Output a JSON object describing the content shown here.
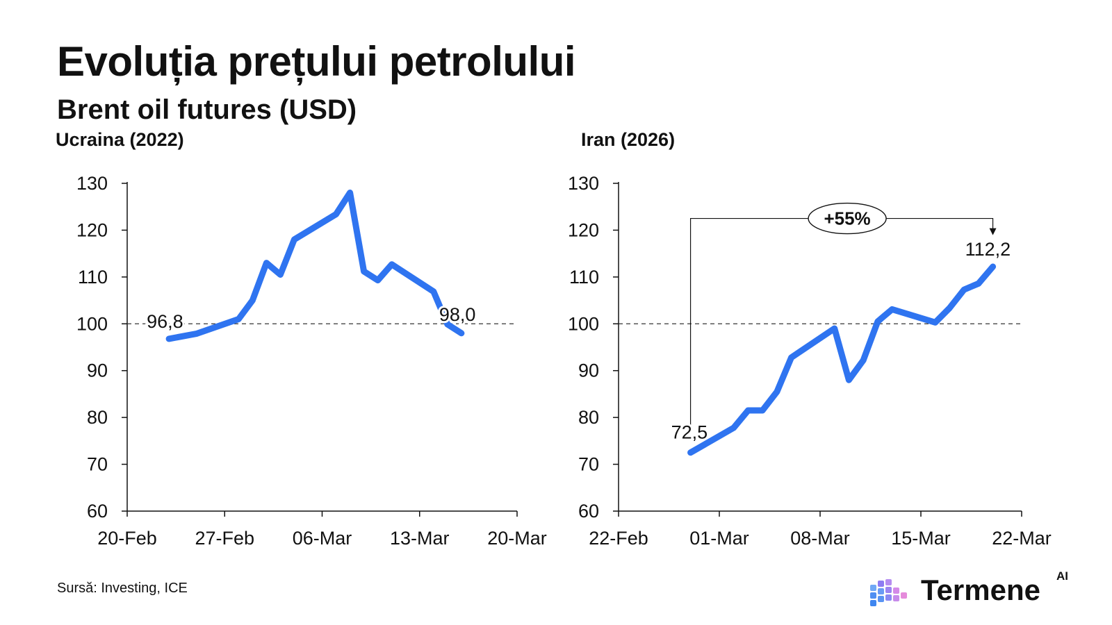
{
  "title": "Evoluția prețului petrolului",
  "subtitle": "Brent oil futures (USD)",
  "source": "Sursă: Investing, ICE",
  "brand": {
    "name": "Termene",
    "superscript": "AI"
  },
  "colors": {
    "line": "#2F74F0",
    "axis": "#111111",
    "reference": "#333333"
  },
  "chart_data": [
    {
      "type": "line",
      "title": "Ucraina (2022)",
      "x_type": "date",
      "ylim": [
        60,
        130
      ],
      "yticks": [
        60,
        70,
        80,
        90,
        100,
        110,
        120,
        130
      ],
      "xlim": [
        "2022-02-20",
        "2022-03-20"
      ],
      "xticks": [
        "2022-02-20",
        "2022-02-27",
        "2022-03-06",
        "2022-03-13",
        "2022-03-20"
      ],
      "xtick_labels": [
        "20-Feb",
        "27-Feb",
        "06-Mar",
        "13-Mar",
        "20-Mar"
      ],
      "reference_line": 100,
      "grid": false,
      "series": [
        {
          "x": [
            "2022-02-23",
            "2022-02-25",
            "2022-02-28",
            "2022-03-01",
            "2022-03-02",
            "2022-03-03",
            "2022-03-04",
            "2022-03-07",
            "2022-03-08",
            "2022-03-09",
            "2022-03-10",
            "2022-03-11",
            "2022-03-14",
            "2022-03-15",
            "2022-03-16"
          ],
          "y": [
            96.8,
            97.9,
            101.0,
            105.0,
            113.0,
            110.5,
            118.0,
            123.4,
            128.0,
            111.2,
            109.3,
            112.7,
            106.9,
            99.9,
            98.0
          ]
        }
      ],
      "annotations": [
        {
          "text": "96,8",
          "x": "2022-02-23",
          "y": 96.8
        },
        {
          "text": "98,0",
          "x": "2022-03-16",
          "y": 98.0
        }
      ]
    },
    {
      "type": "line",
      "title": "Iran (2026)",
      "x_type": "date",
      "ylim": [
        60,
        130
      ],
      "yticks": [
        60,
        70,
        80,
        90,
        100,
        110,
        120,
        130
      ],
      "xlim": [
        "2026-02-22",
        "2026-03-22"
      ],
      "xticks": [
        "2026-02-22",
        "2026-03-01",
        "2026-03-08",
        "2026-03-15",
        "2026-03-22"
      ],
      "xtick_labels": [
        "22-Feb",
        "01-Mar",
        "08-Mar",
        "15-Mar",
        "22-Mar"
      ],
      "reference_line": 100,
      "grid": false,
      "series": [
        {
          "x": [
            "2026-02-27",
            "2026-03-02",
            "2026-03-03",
            "2026-03-04",
            "2026-03-05",
            "2026-03-06",
            "2026-03-09",
            "2026-03-10",
            "2026-03-11",
            "2026-03-12",
            "2026-03-13",
            "2026-03-16",
            "2026-03-17",
            "2026-03-18",
            "2026-03-19",
            "2026-03-20"
          ],
          "y": [
            72.5,
            77.8,
            81.5,
            81.5,
            85.5,
            92.8,
            99.0,
            88.0,
            92.2,
            100.5,
            103.1,
            100.3,
            103.4,
            107.3,
            108.6,
            112.2
          ]
        }
      ],
      "annotations": [
        {
          "text": "72,5",
          "x": "2026-02-27",
          "y": 72.5
        },
        {
          "text": "112,2",
          "x": "2026-03-20",
          "y": 112.2
        }
      ],
      "callout": {
        "text": "+55%",
        "from_x": "2026-02-27",
        "to_x": "2026-03-20",
        "y": 122.5
      }
    }
  ]
}
